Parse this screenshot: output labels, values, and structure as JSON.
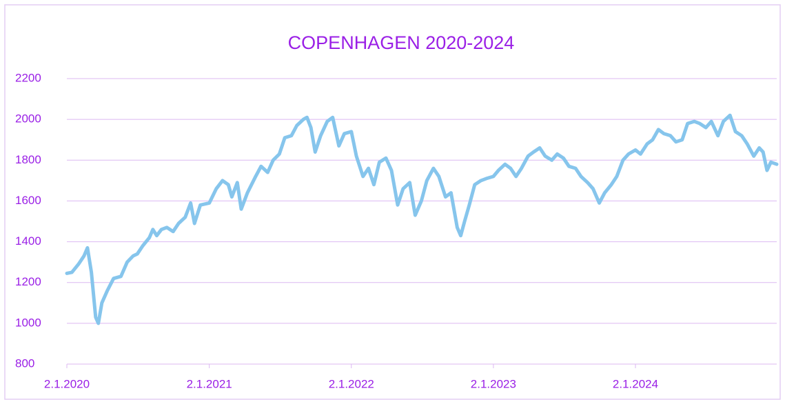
{
  "chart_data": {
    "type": "line",
    "title": "COPENHAGEN 2020-2024",
    "x": [
      "2.1.2020",
      "15.1.2020",
      "1.2.2020",
      "15.2.2020",
      "24.2.2020",
      "5.3.2020",
      "16.3.2020",
      "23.3.2020",
      "1.4.2020",
      "15.4.2020",
      "1.5.2020",
      "20.5.2020",
      "5.6.2020",
      "20.6.2020",
      "1.7.2020",
      "15.7.2020",
      "1.8.2020",
      "10.8.2020",
      "20.8.2020",
      "1.9.2020",
      "15.9.2020",
      "1.10.2020",
      "15.10.2020",
      "1.11.2020",
      "15.11.2020",
      "25.11.2020",
      "10.12.2020",
      "2.1.2021",
      "20.1.2021",
      "5.2.2021",
      "20.2.2021",
      "1.3.2021",
      "15.3.2021",
      "25.3.2021",
      "10.4.2021",
      "1.5.2021",
      "15.5.2021",
      "1.6.2021",
      "15.6.2021",
      "1.7.2021",
      "15.7.2021",
      "1.8.2021",
      "15.8.2021",
      "1.9.2021",
      "10.9.2021",
      "20.9.2021",
      "1.10.2021",
      "15.10.2021",
      "1.11.2021",
      "15.11.2021",
      "1.12.2021",
      "15.12.2021",
      "2.1.2022",
      "15.1.2022",
      "1.2.2022",
      "15.2.2022",
      "1.3.2022",
      "15.3.2022",
      "1.4.2022",
      "15.4.2022",
      "1.5.2022",
      "15.5.2022",
      "1.6.2022",
      "15.6.2022",
      "1.7.2022",
      "15.7.2022",
      "1.8.2022",
      "15.8.2022",
      "1.9.2022",
      "15.9.2022",
      "1.10.2022",
      "10.10.2022",
      "20.10.2022",
      "1.11.2022",
      "15.11.2022",
      "1.12.2022",
      "15.12.2022",
      "2.1.2023",
      "15.1.2023",
      "1.2.2023",
      "15.2.2023",
      "1.3.2023",
      "15.3.2023",
      "1.4.2023",
      "15.4.2023",
      "1.5.2023",
      "15.5.2023",
      "1.6.2023",
      "15.6.2023",
      "1.7.2023",
      "15.7.2023",
      "1.8.2023",
      "15.8.2023",
      "1.9.2023",
      "15.9.2023",
      "1.10.2023",
      "15.10.2023",
      "1.11.2023",
      "15.11.2023",
      "1.12.2023",
      "15.12.2023",
      "2.1.2024",
      "15.1.2024",
      "1.2.2024",
      "15.2.2024",
      "1.3.2024",
      "15.3.2024",
      "1.4.2024",
      "15.4.2024",
      "1.5.2024",
      "15.5.2024",
      "1.6.2024",
      "15.6.2024",
      "1.7.2024",
      "15.7.2024",
      "1.8.2024",
      "15.8.2024",
      "1.9.2024",
      "15.9.2024",
      "1.10.2024",
      "15.10.2024",
      "1.11.2024",
      "15.11.2024",
      "25.11.2024",
      "5.12.2024",
      "15.12.2024",
      "30.12.2024"
    ],
    "series": [
      {
        "color": "#86c5ec",
        "values": [
          1245,
          1250,
          1290,
          1330,
          1370,
          1250,
          1030,
          1000,
          1100,
          1160,
          1220,
          1230,
          1300,
          1330,
          1340,
          1380,
          1420,
          1460,
          1430,
          1460,
          1470,
          1450,
          1490,
          1520,
          1590,
          1490,
          1580,
          1590,
          1660,
          1700,
          1680,
          1620,
          1690,
          1560,
          1640,
          1720,
          1770,
          1740,
          1800,
          1830,
          1910,
          1920,
          1970,
          2000,
          2010,
          1960,
          1840,
          1920,
          1990,
          2010,
          1870,
          1930,
          1940,
          1820,
          1720,
          1760,
          1680,
          1790,
          1810,
          1750,
          1580,
          1660,
          1690,
          1530,
          1600,
          1700,
          1760,
          1720,
          1620,
          1640,
          1470,
          1430,
          1500,
          1580,
          1680,
          1700,
          1710,
          1720,
          1750,
          1780,
          1760,
          1720,
          1760,
          1820,
          1840,
          1860,
          1820,
          1800,
          1830,
          1810,
          1770,
          1760,
          1720,
          1690,
          1660,
          1590,
          1640,
          1680,
          1720,
          1800,
          1830,
          1850,
          1830,
          1880,
          1900,
          1950,
          1930,
          1920,
          1890,
          1900,
          1980,
          1990,
          1980,
          1960,
          1990,
          1920,
          1990,
          2020,
          1940,
          1920,
          1880,
          1820,
          1860,
          1840,
          1750,
          1790,
          1780
        ]
      }
    ],
    "xlim": [
      "2.1.2020",
      "30.12.2024"
    ],
    "xticks": [
      "2.1.2020",
      "2.1.2021",
      "2.1.2022",
      "2.1.2023",
      "2.1.2024"
    ],
    "ylim": [
      800,
      2200
    ],
    "yticks": [
      800,
      1000,
      1200,
      1400,
      1600,
      1800,
      2000,
      2200
    ],
    "grid": true
  }
}
